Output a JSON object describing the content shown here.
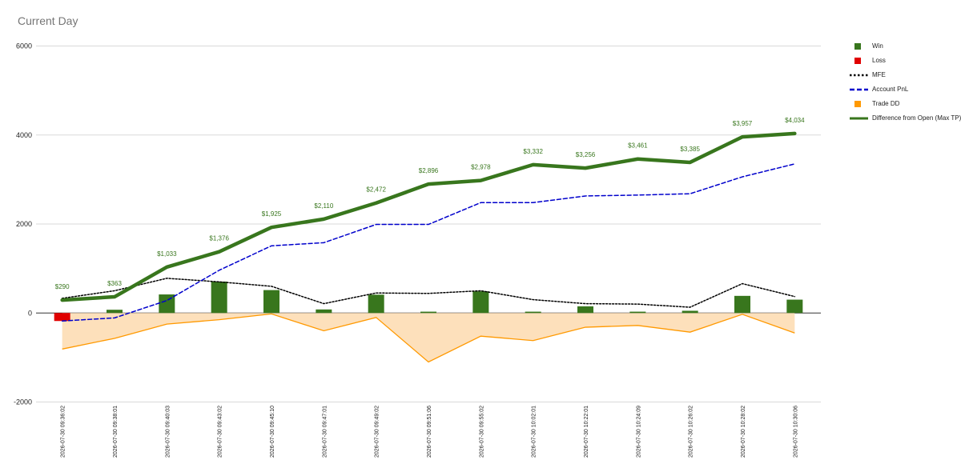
{
  "title": "Current Day",
  "chart_data": {
    "type": "combo",
    "categories": [
      "2026-07-30 09:36:02",
      "2026-07-30 09:38:01",
      "2026-07-30 09:40:03",
      "2026-07-30 09:43:02",
      "2026-07-30 09:45:10",
      "2026-07-30 09:47:01",
      "2026-07-30 09:49:02",
      "2026-07-30 09:51:06",
      "2026-07-30 09:55:02",
      "2026-07-30 10:02:01",
      "2026-07-30 10:22:01",
      "2026-07-30 10:24:09",
      "2026-07-30 10:26:02",
      "2026-07-30 10:28:02",
      "2026-07-30 10:30:06"
    ],
    "ylim": [
      -2000,
      6000
    ],
    "yticks": [
      -2000,
      0,
      2000,
      4000,
      6000
    ],
    "grid": true,
    "legend_position": "right",
    "series": [
      {
        "name": "Win",
        "kind": "bar",
        "color": "#38761d",
        "values": [
          0,
          73,
          417,
          706,
          515,
          80,
          412,
          30,
          487,
          30,
          150,
          30,
          50,
          385,
          300
        ]
      },
      {
        "name": "Loss",
        "kind": "bar",
        "color": "#e00000",
        "values": [
          -180,
          0,
          0,
          0,
          0,
          0,
          0,
          0,
          0,
          0,
          0,
          0,
          0,
          0,
          0
        ]
      },
      {
        "name": "MFE",
        "kind": "line",
        "style": "dotted",
        "color": "#000000",
        "values": [
          330,
          500,
          780,
          700,
          600,
          210,
          450,
          440,
          500,
          300,
          210,
          200,
          130,
          660,
          370
        ]
      },
      {
        "name": "Account PnL",
        "kind": "line",
        "style": "dashed",
        "color": "#0000cc",
        "values": [
          -180,
          -110,
          280,
          960,
          1510,
          1580,
          1990,
          1990,
          2480,
          2480,
          2630,
          2650,
          2680,
          3060,
          3350
        ]
      },
      {
        "name": "Trade DD",
        "kind": "area",
        "color": "#ff9900",
        "fill": "#fde0bb",
        "values": [
          -810,
          -570,
          -250,
          -150,
          -20,
          -400,
          -100,
          -1100,
          -520,
          -620,
          -320,
          -280,
          -430,
          -30,
          -450
        ]
      },
      {
        "name": "Difference from Open (Max TP)",
        "kind": "line",
        "style": "solid",
        "color": "#38761d",
        "values": [
          290,
          363,
          1033,
          1376,
          1925,
          2110,
          2472,
          2896,
          2978,
          3332,
          3256,
          3461,
          3385,
          3957,
          4034
        ],
        "labels": [
          "$290",
          "$363",
          "$1,033",
          "$1,376",
          "$1,925",
          "$2,110",
          "$2,472",
          "$2,896",
          "$2,978",
          "$3,332",
          "$3,256",
          "$3,461",
          "$3,385",
          "$3,957",
          "$4,034"
        ]
      }
    ]
  }
}
